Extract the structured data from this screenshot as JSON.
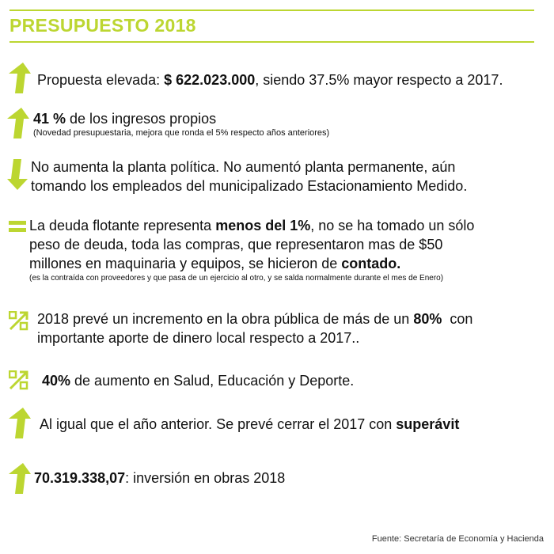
{
  "title": "PRESUPUESTO 2018",
  "accent_color": "#bcd631",
  "items": [
    {
      "icon": "arrow-up-icon",
      "t1": "Propuesta elevada: ",
      "b1": "$ 622.023.000",
      "t2": ", siendo 37.5% mayor respecto a 2017."
    },
    {
      "icon": "arrow-up-icon",
      "b1": "41 %",
      "t1": " de los ingresos propios",
      "note": "(Novedad presupuestaria, mejora que ronda el 5% respecto años anteriores)"
    },
    {
      "icon": "arrow-down-icon",
      "l1": "No aumenta la planta política. No aumentó planta permanente, aún",
      "l2": "tomando los empleados del municipalizado Estacionamiento Medido."
    },
    {
      "icon": "equals-icon",
      "t1": "La deuda flotante representa ",
      "b1": "menos del 1%",
      "t2": ", no se ha tomado un sólo",
      "l2": "peso de deuda, toda las compras, que representaron mas de $50",
      "t3": "millones en maquinaria y equipos, se hicieron de ",
      "b2": "contado.",
      "note": "(es la contraída con proveedores y que pasa de un ejercicio al otro, y se salda normalmente durante el mes de Enero)"
    },
    {
      "icon": "percent-up-icon",
      "t1": "2018 prevé un incremento en la obra pública de más de un ",
      "b1": "80%",
      "t2": "  con",
      "l2": "importante aporte de dinero local respecto a 2017.."
    },
    {
      "icon": "percent-up-icon",
      "b1": "40%",
      "t1": " de aumento en Salud, Educación y Deporte."
    },
    {
      "icon": "arrow-up-icon",
      "t1": "Al igual que el año anterior. Se prevé cerrar el 2017 con ",
      "b1": "superávit"
    },
    {
      "icon": "arrow-up-icon",
      "b1": "70.319.338,07",
      "t1": ": inversión en obras 2018"
    }
  ],
  "source": "Fuente: Secretaría de Economía y Hacienda"
}
